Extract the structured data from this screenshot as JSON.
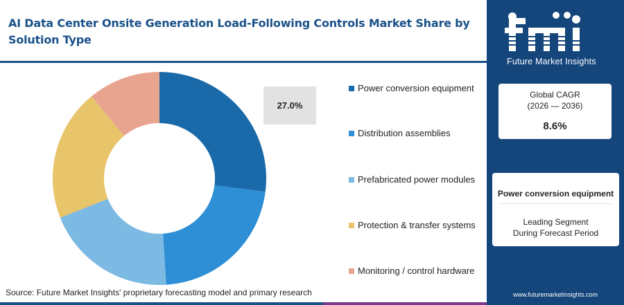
{
  "title": "AI Data Center Onsite Generation Load-Following Controls Market Share by Solution Type",
  "callout": {
    "value": "27.0%"
  },
  "chart_data": {
    "type": "pie",
    "style": "donut",
    "categories": [
      "Power conversion equipment",
      "Distribution assemblies",
      "Prefabricated power modules",
      "Protection & transfer systems",
      "Monitoring / control hardware"
    ],
    "values": [
      27.0,
      22.0,
      20.0,
      20.0,
      11.0
    ],
    "colors": [
      "#1a6aaa",
      "#2e8fd6",
      "#7cb9e3",
      "#e8c46a",
      "#e9a48f"
    ],
    "legend_position": "right"
  },
  "source": "Source: Future Market Insights' proprietary forecasting model and primary research",
  "panel": {
    "logo_icon": "fmi-logo",
    "logo_subtitle": "Future Market Insights",
    "cagr_label": "Global CAGR",
    "cagr_period": "(2026 — 2036)",
    "cagr_value": "8.6%",
    "segment_name": "Power conversion equipment",
    "segment_desc_line1": "Leading Segment",
    "segment_desc_line2": "During Forecast Period",
    "url": "www.futuremarketinsights.com"
  },
  "colors": {
    "brand_blue": "#1a5189",
    "panel_blue": "#14457b",
    "bottom_bar": [
      "#1a5189",
      "#e07a3c",
      "#7a3b8a"
    ]
  }
}
